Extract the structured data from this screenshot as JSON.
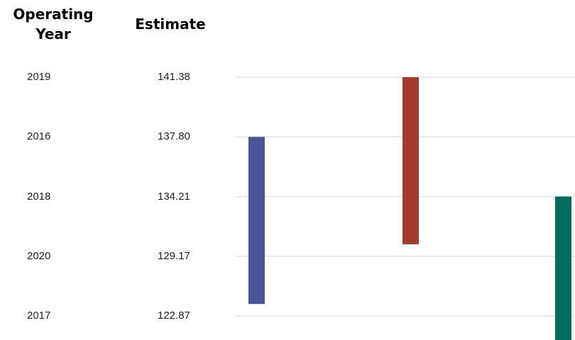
{
  "table": {
    "headers": {
      "year": "Operating Year",
      "estimate": "Estimate"
    },
    "rows": [
      {
        "year": "2019",
        "estimate": "141.38"
      },
      {
        "year": "2016",
        "estimate": "137.80"
      },
      {
        "year": "2018",
        "estimate": "134.21"
      },
      {
        "year": "2020",
        "estimate": "129.17"
      },
      {
        "year": "2017",
        "estimate": "122.87"
      }
    ]
  },
  "chart_data": {
    "type": "bar",
    "categories": [
      "2019",
      "2016",
      "2018",
      "2020",
      "2017"
    ],
    "grid": true,
    "ranges": [
      {
        "color": "#4a5597",
        "from_row": "2016",
        "to_row": "2020",
        "start": 1.0,
        "end": 3.8
      },
      {
        "color": "#a23a2e",
        "from_row": "2019",
        "to_row": "2018",
        "start": 0.0,
        "end": 2.8
      },
      {
        "color": "#016b5f",
        "from_row": "2018",
        "to_row": "2017",
        "start": 2.0,
        "end": 4.5
      }
    ]
  }
}
